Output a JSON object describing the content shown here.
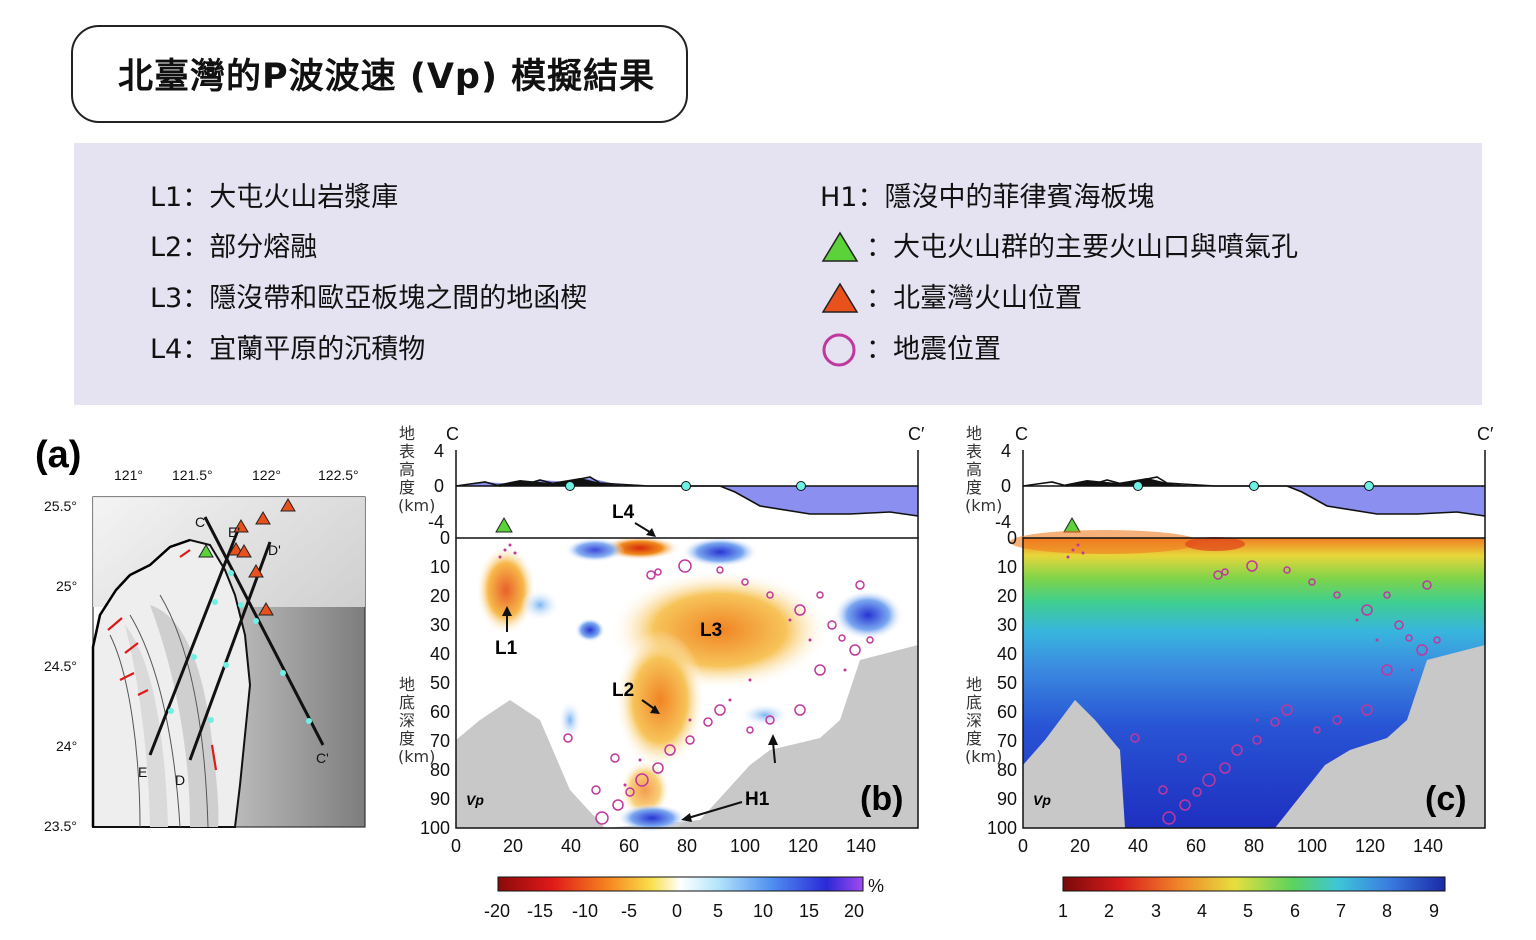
{
  "title": "北臺灣的P波波速 (Vp) 模擬結果",
  "legend": {
    "left": [
      {
        "code": "L1",
        "sep": "：",
        "text": "大屯火山岩漿庫"
      },
      {
        "code": "L2",
        "sep": "：",
        "text": "部分熔融"
      },
      {
        "code": "L3",
        "sep": "：",
        "text": "隱沒帶和歐亞板塊之間的地函楔"
      },
      {
        "code": "L4",
        "sep": "：",
        "text": "宜蘭平原的沉積物"
      }
    ],
    "right": [
      {
        "code": "H1",
        "sep": "：",
        "text": "隱沒中的菲律賓海板塊"
      },
      {
        "symbol": "green-triangle",
        "sep": "：",
        "text": "大屯火山群的主要火山口與噴氣孔"
      },
      {
        "symbol": "orange-triangle",
        "sep": "：",
        "text": "北臺灣火山位置"
      },
      {
        "symbol": "magenta-circle",
        "sep": "：",
        "text": "地震位置"
      }
    ],
    "colors": {
      "green": "#5bd13a",
      "orange": "#e8501c",
      "magenta": "#c0379e"
    }
  },
  "panel_a": {
    "label": "(a)",
    "lon_ticks": [
      "121°",
      "121.5°",
      "122°",
      "122.5°"
    ],
    "lat_ticks": [
      "25.5°",
      "25°",
      "24.5°",
      "24°",
      "23.5°"
    ],
    "profiles": [
      {
        "start": "C",
        "end": "C'"
      },
      {
        "start": "D",
        "end": "D'"
      },
      {
        "start": "E",
        "end": "E'"
      }
    ]
  },
  "panel_b": {
    "label": "(b)",
    "vp_tag": "Vp",
    "start": "C",
    "end": "C′",
    "top_ylabel": "地表高度(km)",
    "bottom_ylabel": "地底深度(km)",
    "top_ticks": [
      "4",
      "0",
      "-4"
    ],
    "depth_ticks": [
      "0",
      "10",
      "20",
      "30",
      "40",
      "50",
      "60",
      "70",
      "80",
      "90",
      "100"
    ],
    "x_ticks": [
      "0",
      "20",
      "40",
      "60",
      "80",
      "100",
      "120",
      "140"
    ],
    "annotations": [
      "L4",
      "L1",
      "L3",
      "L2",
      "H1"
    ],
    "colorbar": {
      "unit": "%",
      "ticks": [
        "-20",
        "-15",
        "-10",
        "-5",
        "0",
        "5",
        "10",
        "15",
        "20"
      ]
    }
  },
  "panel_c": {
    "label": "(c)",
    "vp_tag": "Vp",
    "start": "C",
    "end": "C′",
    "top_ylabel": "地表高度(km)",
    "bottom_ylabel": "地底深度(km)",
    "top_ticks": [
      "4",
      "0",
      "-4"
    ],
    "depth_ticks": [
      "0",
      "10",
      "20",
      "30",
      "40",
      "50",
      "60",
      "70",
      "80",
      "90",
      "100"
    ],
    "x_ticks": [
      "0",
      "20",
      "40",
      "60",
      "80",
      "100",
      "120",
      "140"
    ],
    "colorbar": {
      "ticks": [
        "1",
        "2",
        "3",
        "4",
        "5",
        "6",
        "7",
        "8",
        "9"
      ]
    }
  }
}
